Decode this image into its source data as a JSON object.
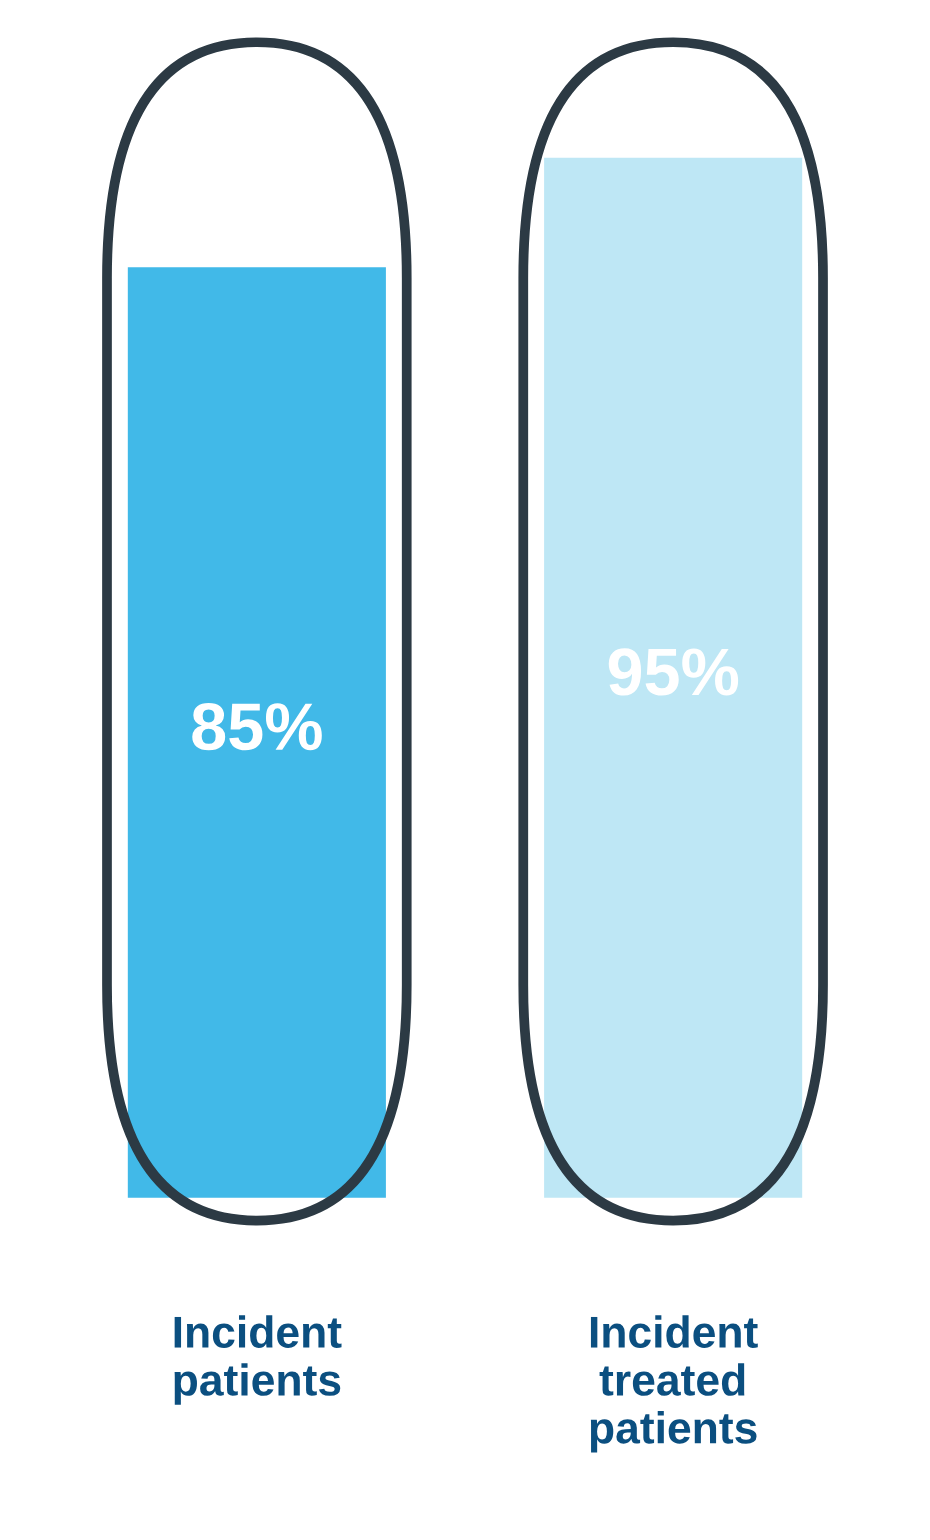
{
  "chart_data": {
    "type": "bar",
    "categories": [
      "Incident\npatients",
      "Incident\ntreated\npatients"
    ],
    "values": [
      85,
      95
    ],
    "colors": [
      "#41b9e8",
      "#bee7f5"
    ],
    "value_labels": [
      "85%",
      "95%"
    ],
    "grid": false,
    "legend": false
  }
}
